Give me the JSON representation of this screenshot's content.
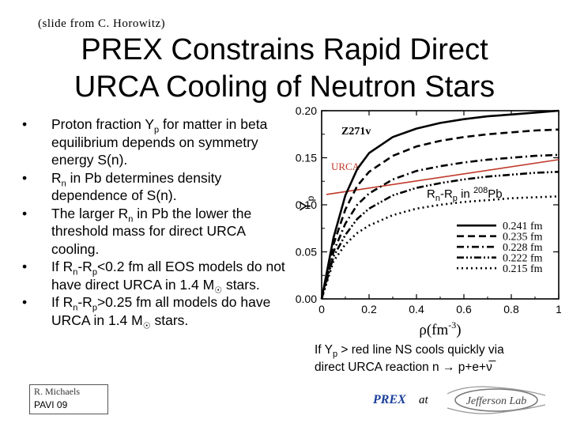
{
  "header": {
    "credit": "(slide from  C. Horowitz)"
  },
  "title": {
    "line1": "PREX Constrains Rapid Direct",
    "line2": "URCA Cooling of Neutron Stars"
  },
  "bullets": [
    {
      "mark": "•",
      "text": "Proton fraction Y<sub>p</sub> for matter in beta equilibrium depends on symmetry energy S(n)."
    },
    {
      "mark": "•",
      "text": "R<sub>n</sub> in Pb determines density dependence of S(n)."
    },
    {
      "mark": "•",
      "text": "The larger R<sub>n</sub> in Pb the lower the threshold mass for direct URCA cooling."
    },
    {
      "mark": "•",
      "text": "If R<sub>n</sub>-R<sub>p</sub>&lt;0.2 fm all EOS models do not have direct URCA in 1.4 M<sub>&#x2609;</sub> stars."
    },
    {
      "mark": "•",
      "text": "If R<sub>n</sub>-R<sub>p</sub>&gt;0.25 fm all models do have URCA in 1.4 M<sub>&#x2609;</sub> stars."
    }
  ],
  "footer": {
    "author": "R. Michaels",
    "venue": "PAVI 09",
    "prex": "PREX",
    "at": "at",
    "lab_logo": "Jefferson Lab"
  },
  "caption": {
    "line1_html": "If Y<sub>p</sub> &gt; red line NS cools quickly via",
    "line2_html": "direct URCA reaction n &#x2192; p+e+&#x3BD;&#x305;"
  },
  "rn_label_html": "R<sub>n</sub>-R<sub>p</sub> in <sup>208</sup>Pb",
  "colors": {
    "urca_line": "#c0392b",
    "prex_text": "#1a3e9a",
    "curves": "#000000"
  },
  "chart_data": {
    "type": "line",
    "model_label": "Z271v",
    "threshold_label": "URCA",
    "xlabel_html": "&#x3C1;(fm<sup>-3</sup>)",
    "ylabel_html": "Y<sub>p</sub>",
    "xlim": [
      0,
      1
    ],
    "ylim": [
      0,
      0.2
    ],
    "xticks": [
      "0",
      "0.2",
      "0.4",
      "0.6",
      "0.8",
      "1"
    ],
    "yticks": [
      "0.00",
      "0.05",
      "0.10",
      "0.15",
      "0.20"
    ],
    "threshold_y": [
      0.111,
      0.148
    ],
    "legend": {
      "placement": "lower-right",
      "entries": [
        "0.241 fm",
        "0.235 fm",
        "0.228 fm",
        "0.222 fm",
        "0.215 fm"
      ]
    },
    "series": [
      {
        "name": "0.241 fm",
        "dash": "solid",
        "x": [
          0,
          0.05,
          0.1,
          0.15,
          0.2,
          0.3,
          0.4,
          0.5,
          0.6,
          0.7,
          0.8,
          0.9,
          1.0
        ],
        "y": [
          0,
          0.065,
          0.11,
          0.138,
          0.155,
          0.172,
          0.181,
          0.187,
          0.191,
          0.194,
          0.196,
          0.198,
          0.2
        ]
      },
      {
        "name": "0.235 fm",
        "dash": "dash",
        "x": [
          0,
          0.05,
          0.1,
          0.15,
          0.2,
          0.3,
          0.4,
          0.5,
          0.6,
          0.7,
          0.8,
          0.9,
          1.0
        ],
        "y": [
          0,
          0.058,
          0.095,
          0.12,
          0.135,
          0.152,
          0.162,
          0.168,
          0.172,
          0.175,
          0.177,
          0.179,
          0.18
        ]
      },
      {
        "name": "0.228 fm",
        "dash": "dashdot",
        "x": [
          0,
          0.05,
          0.1,
          0.15,
          0.2,
          0.3,
          0.4,
          0.5,
          0.6,
          0.7,
          0.8,
          0.9,
          1.0
        ],
        "y": [
          0,
          0.05,
          0.08,
          0.1,
          0.112,
          0.127,
          0.136,
          0.141,
          0.145,
          0.148,
          0.15,
          0.152,
          0.153
        ]
      },
      {
        "name": "0.222 fm",
        "dash": "dashdotdot",
        "x": [
          0,
          0.05,
          0.1,
          0.15,
          0.2,
          0.3,
          0.4,
          0.5,
          0.6,
          0.7,
          0.8,
          0.9,
          1.0
        ],
        "y": [
          0,
          0.045,
          0.068,
          0.085,
          0.096,
          0.11,
          0.118,
          0.123,
          0.127,
          0.13,
          0.132,
          0.134,
          0.135
        ]
      },
      {
        "name": "0.215 fm",
        "dash": "dot",
        "x": [
          0,
          0.05,
          0.1,
          0.15,
          0.2,
          0.3,
          0.4,
          0.5,
          0.6,
          0.7,
          0.8,
          0.9,
          1.0
        ],
        "y": [
          0,
          0.04,
          0.058,
          0.07,
          0.078,
          0.089,
          0.096,
          0.1,
          0.103,
          0.105,
          0.107,
          0.108,
          0.109
        ]
      }
    ]
  }
}
